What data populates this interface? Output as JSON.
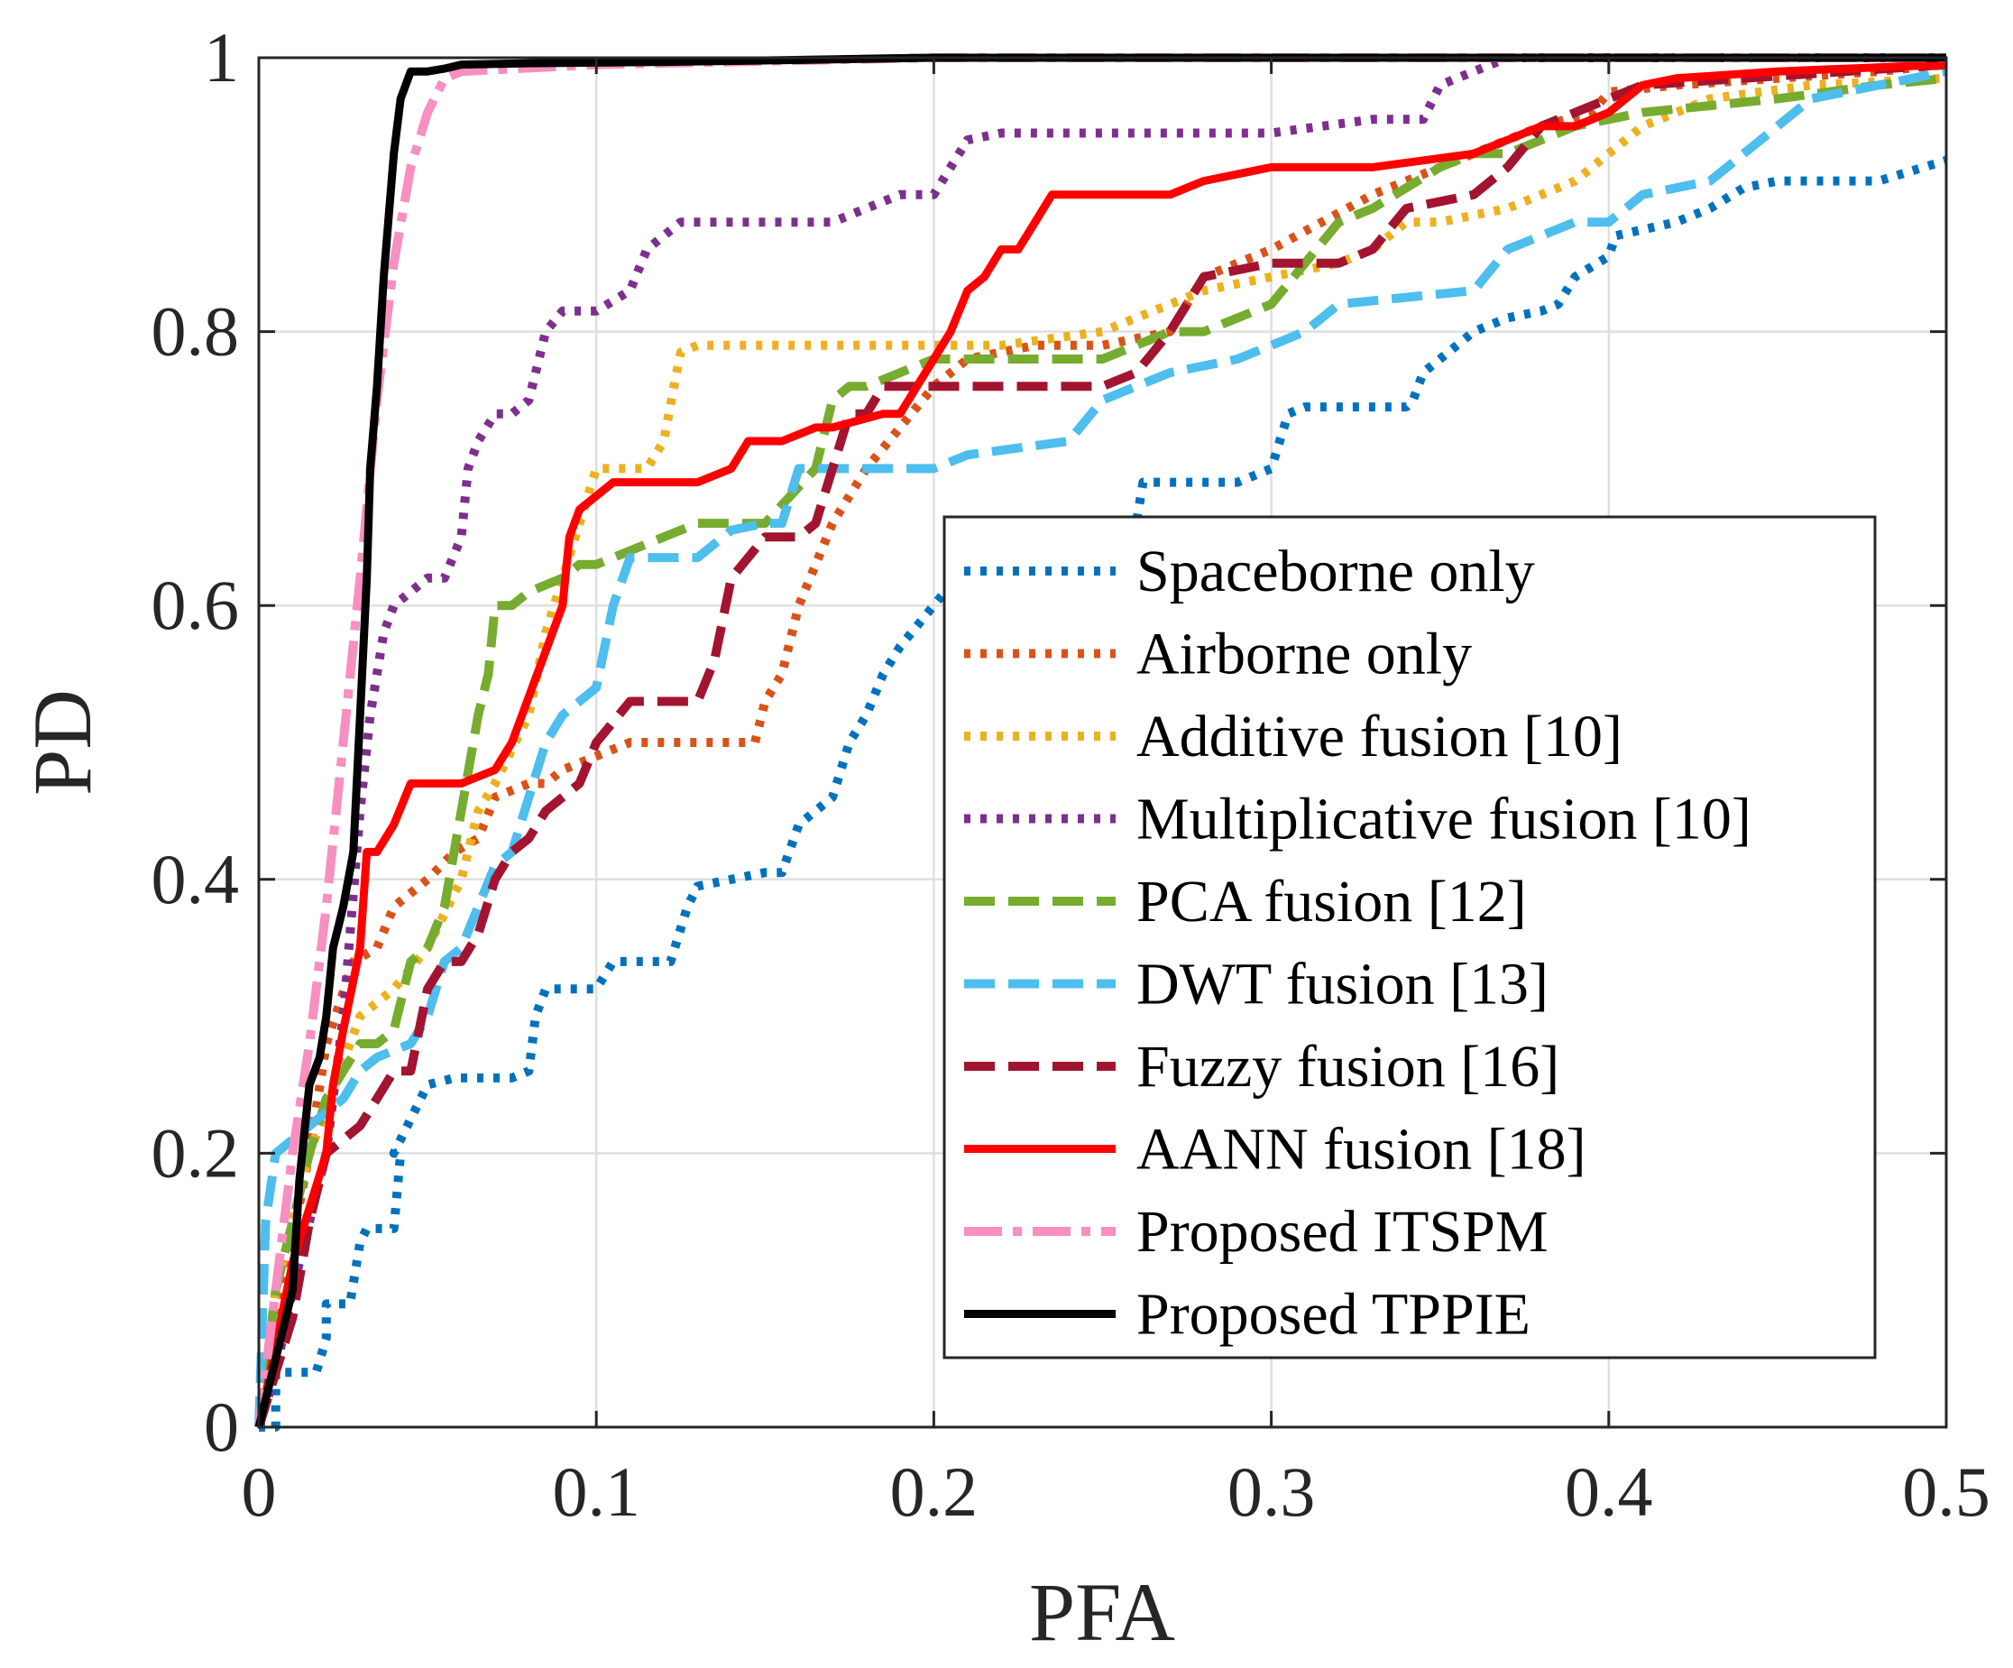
{
  "chart_data": {
    "type": "line",
    "title": "",
    "xlabel": "PFA",
    "ylabel": "PD",
    "xlim": [
      0,
      0.5
    ],
    "ylim": [
      0,
      1
    ],
    "xticks": [
      0,
      0.1,
      0.2,
      0.3,
      0.4,
      0.5
    ],
    "xtick_labels": [
      "0",
      "0.1",
      "0.2",
      "0.3",
      "0.4",
      "0.5"
    ],
    "yticks": [
      0,
      0.2,
      0.4,
      0.6,
      0.8,
      1
    ],
    "ytick_labels": [
      "0",
      "0.2",
      "0.4",
      "0.6",
      "0.8",
      "1"
    ],
    "grid": true,
    "legend_position": "lower-right",
    "series": [
      {
        "name": "Spaceborne only",
        "color": "#0072BD",
        "style": "dotted",
        "x": [
          0,
          0.005,
          0.005,
          0.017,
          0.02,
          0.02,
          0.027,
          0.03,
          0.032,
          0.04,
          0.042,
          0.04,
          0.05,
          0.058,
          0.06,
          0.075,
          0.08,
          0.082,
          0.085,
          0.088,
          0.1,
          0.105,
          0.11,
          0.122,
          0.127,
          0.13,
          0.14,
          0.15,
          0.155,
          0.16,
          0.17,
          0.175,
          0.18,
          0.185,
          0.19,
          0.2,
          0.21,
          0.22,
          0.23,
          0.24,
          0.25,
          0.26,
          0.262,
          0.27,
          0.29,
          0.3,
          0.305,
          0.31,
          0.32,
          0.34,
          0.342,
          0.345,
          0.35,
          0.36,
          0.37,
          0.38,
          0.385,
          0.39,
          0.4,
          0.402,
          0.42,
          0.43,
          0.44,
          0.45,
          0.46,
          0.48,
          0.5
        ],
        "y": [
          0,
          0,
          0.04,
          0.04,
          0.065,
          0.09,
          0.09,
          0.135,
          0.145,
          0.145,
          0.2,
          0.2,
          0.25,
          0.255,
          0.255,
          0.255,
          0.26,
          0.3,
          0.32,
          0.32,
          0.32,
          0.34,
          0.34,
          0.34,
          0.38,
          0.395,
          0.4,
          0.405,
          0.405,
          0.44,
          0.46,
          0.5,
          0.52,
          0.55,
          0.57,
          0.6,
          0.63,
          0.63,
          0.64,
          0.65,
          0.65,
          0.66,
          0.69,
          0.69,
          0.69,
          0.7,
          0.74,
          0.745,
          0.745,
          0.745,
          0.75,
          0.77,
          0.78,
          0.8,
          0.81,
          0.815,
          0.82,
          0.84,
          0.855,
          0.87,
          0.88,
          0.89,
          0.905,
          0.91,
          0.91,
          0.91,
          0.925
        ]
      },
      {
        "name": "Airborne only",
        "color": "#D95319",
        "style": "dotted",
        "x": [
          0,
          0.003,
          0.007,
          0.015,
          0.02,
          0.028,
          0.035,
          0.04,
          0.05,
          0.058,
          0.065,
          0.07,
          0.08,
          0.085,
          0.09,
          0.1,
          0.11,
          0.12,
          0.13,
          0.14,
          0.147,
          0.15,
          0.155,
          0.16,
          0.165,
          0.17,
          0.18,
          0.19,
          0.2,
          0.21,
          0.23,
          0.25,
          0.27,
          0.28,
          0.3,
          0.33,
          0.35,
          0.37,
          0.38,
          0.395,
          0.4,
          0.42,
          0.45,
          0.48,
          0.5
        ],
        "y": [
          0,
          0.04,
          0.1,
          0.2,
          0.28,
          0.34,
          0.35,
          0.38,
          0.4,
          0.42,
          0.43,
          0.46,
          0.47,
          0.47,
          0.48,
          0.49,
          0.5,
          0.5,
          0.5,
          0.5,
          0.5,
          0.53,
          0.55,
          0.6,
          0.63,
          0.66,
          0.7,
          0.73,
          0.76,
          0.78,
          0.79,
          0.79,
          0.8,
          0.84,
          0.86,
          0.9,
          0.92,
          0.94,
          0.95,
          0.96,
          0.975,
          0.98,
          0.985,
          0.99,
          0.995
        ]
      },
      {
        "name": "Additive fusion [10]",
        "color": "#EDB120",
        "style": "dotted",
        "x": [
          0,
          0.005,
          0.015,
          0.03,
          0.04,
          0.05,
          0.06,
          0.065,
          0.07,
          0.08,
          0.085,
          0.09,
          0.095,
          0.1,
          0.11,
          0.115,
          0.12,
          0.123,
          0.125,
          0.13,
          0.15,
          0.2,
          0.22,
          0.25,
          0.26,
          0.28,
          0.3,
          0.32,
          0.33,
          0.34,
          0.35,
          0.37,
          0.38,
          0.39,
          0.4,
          0.41,
          0.43,
          0.46,
          0.5
        ],
        "y": [
          0,
          0.1,
          0.2,
          0.3,
          0.32,
          0.35,
          0.4,
          0.45,
          0.47,
          0.52,
          0.58,
          0.62,
          0.66,
          0.7,
          0.7,
          0.7,
          0.72,
          0.76,
          0.785,
          0.79,
          0.79,
          0.79,
          0.79,
          0.8,
          0.81,
          0.83,
          0.84,
          0.85,
          0.86,
          0.88,
          0.88,
          0.89,
          0.9,
          0.91,
          0.93,
          0.95,
          0.97,
          0.98,
          0.985
        ]
      },
      {
        "name": "Multiplicative fusion [10]",
        "color": "#7E2F8E",
        "style": "dotted",
        "x": [
          0,
          0.005,
          0.01,
          0.015,
          0.02,
          0.025,
          0.03,
          0.033,
          0.035,
          0.037,
          0.04,
          0.045,
          0.05,
          0.055,
          0.06,
          0.062,
          0.065,
          0.07,
          0.075,
          0.08,
          0.085,
          0.09,
          0.1,
          0.11,
          0.115,
          0.12,
          0.125,
          0.13,
          0.15,
          0.17,
          0.18,
          0.19,
          0.2,
          0.205,
          0.21,
          0.22,
          0.25,
          0.3,
          0.33,
          0.345,
          0.35,
          0.36,
          0.37,
          0.38,
          0.4,
          0.45,
          0.5
        ],
        "y": [
          0,
          0.04,
          0.1,
          0.15,
          0.2,
          0.3,
          0.45,
          0.52,
          0.55,
          0.58,
          0.6,
          0.61,
          0.62,
          0.62,
          0.65,
          0.7,
          0.72,
          0.74,
          0.74,
          0.75,
          0.8,
          0.815,
          0.815,
          0.83,
          0.86,
          0.87,
          0.88,
          0.88,
          0.88,
          0.88,
          0.89,
          0.9,
          0.9,
          0.92,
          0.94,
          0.945,
          0.945,
          0.945,
          0.955,
          0.955,
          0.98,
          0.99,
          1.0,
          1.0,
          1.0,
          1.0,
          1.0
        ]
      },
      {
        "name": "PCA fusion [12]",
        "color": "#77AC30",
        "style": "dashed",
        "x": [
          0,
          0.005,
          0.01,
          0.015,
          0.02,
          0.025,
          0.03,
          0.035,
          0.04,
          0.045,
          0.05,
          0.055,
          0.06,
          0.065,
          0.068,
          0.07,
          0.075,
          0.08,
          0.09,
          0.095,
          0.1,
          0.11,
          0.12,
          0.13,
          0.15,
          0.165,
          0.17,
          0.175,
          0.18,
          0.19,
          0.2,
          0.25,
          0.26,
          0.27,
          0.28,
          0.3,
          0.31,
          0.32,
          0.33,
          0.35,
          0.36,
          0.37,
          0.38,
          0.39,
          0.4,
          0.41,
          0.43,
          0.45,
          0.48,
          0.5
        ],
        "y": [
          0,
          0.1,
          0.15,
          0.2,
          0.24,
          0.26,
          0.28,
          0.28,
          0.29,
          0.34,
          0.35,
          0.38,
          0.45,
          0.52,
          0.55,
          0.6,
          0.6,
          0.61,
          0.62,
          0.63,
          0.63,
          0.64,
          0.65,
          0.66,
          0.66,
          0.7,
          0.75,
          0.76,
          0.76,
          0.77,
          0.78,
          0.78,
          0.79,
          0.8,
          0.8,
          0.82,
          0.85,
          0.88,
          0.89,
          0.92,
          0.93,
          0.93,
          0.94,
          0.95,
          0.955,
          0.96,
          0.965,
          0.97,
          0.98,
          0.985
        ]
      },
      {
        "name": "DWT fusion [13]",
        "color": "#4DBEEE",
        "style": "dashed",
        "x": [
          0,
          0.002,
          0.005,
          0.01,
          0.015,
          0.02,
          0.025,
          0.03,
          0.035,
          0.045,
          0.05,
          0.055,
          0.06,
          0.065,
          0.07,
          0.075,
          0.08,
          0.085,
          0.09,
          0.095,
          0.1,
          0.105,
          0.11,
          0.13,
          0.14,
          0.15,
          0.155,
          0.16,
          0.17,
          0.2,
          0.21,
          0.24,
          0.25,
          0.26,
          0.27,
          0.29,
          0.31,
          0.32,
          0.36,
          0.37,
          0.38,
          0.39,
          0.4,
          0.41,
          0.43,
          0.44,
          0.45,
          0.46,
          0.48,
          0.5
        ],
        "y": [
          0,
          0.15,
          0.2,
          0.21,
          0.22,
          0.23,
          0.24,
          0.26,
          0.27,
          0.28,
          0.3,
          0.34,
          0.35,
          0.38,
          0.41,
          0.42,
          0.46,
          0.5,
          0.52,
          0.53,
          0.54,
          0.6,
          0.635,
          0.635,
          0.655,
          0.66,
          0.66,
          0.7,
          0.7,
          0.7,
          0.71,
          0.72,
          0.75,
          0.76,
          0.77,
          0.78,
          0.8,
          0.82,
          0.83,
          0.86,
          0.87,
          0.88,
          0.88,
          0.9,
          0.91,
          0.93,
          0.95,
          0.97,
          0.98,
          0.99
        ]
      },
      {
        "name": "Fuzzy fusion [16]",
        "color": "#A2142F",
        "style": "dashed",
        "x": [
          0,
          0.005,
          0.01,
          0.015,
          0.02,
          0.025,
          0.03,
          0.035,
          0.04,
          0.045,
          0.05,
          0.055,
          0.06,
          0.065,
          0.07,
          0.075,
          0.08,
          0.085,
          0.095,
          0.1,
          0.11,
          0.13,
          0.135,
          0.14,
          0.15,
          0.16,
          0.165,
          0.17,
          0.175,
          0.18,
          0.185,
          0.19,
          0.2,
          0.21,
          0.22,
          0.25,
          0.26,
          0.27,
          0.28,
          0.3,
          0.32,
          0.33,
          0.34,
          0.36,
          0.37,
          0.38,
          0.4,
          0.41,
          0.44,
          0.47,
          0.5
        ],
        "y": [
          0,
          0.04,
          0.08,
          0.15,
          0.2,
          0.21,
          0.22,
          0.24,
          0.26,
          0.26,
          0.32,
          0.34,
          0.34,
          0.36,
          0.4,
          0.42,
          0.43,
          0.45,
          0.47,
          0.5,
          0.53,
          0.53,
          0.56,
          0.62,
          0.65,
          0.65,
          0.66,
          0.7,
          0.74,
          0.74,
          0.76,
          0.76,
          0.76,
          0.76,
          0.76,
          0.76,
          0.77,
          0.8,
          0.84,
          0.85,
          0.85,
          0.86,
          0.89,
          0.9,
          0.92,
          0.95,
          0.97,
          0.98,
          0.985,
          0.99,
          0.995
        ]
      },
      {
        "name": "AANN fusion [18]",
        "color": "#FF0000",
        "style": "solid",
        "x": [
          0,
          0.005,
          0.01,
          0.015,
          0.02,
          0.022,
          0.025,
          0.03,
          0.032,
          0.035,
          0.04,
          0.045,
          0.045,
          0.06,
          0.07,
          0.075,
          0.09,
          0.092,
          0.095,
          0.1,
          0.105,
          0.13,
          0.14,
          0.145,
          0.155,
          0.165,
          0.17,
          0.185,
          0.19,
          0.195,
          0.2,
          0.205,
          0.21,
          0.215,
          0.22,
          0.225,
          0.23,
          0.235,
          0.24,
          0.27,
          0.28,
          0.3,
          0.31,
          0.33,
          0.36,
          0.38,
          0.39,
          0.4,
          0.405,
          0.41,
          0.42,
          0.45,
          0.5
        ],
        "y": [
          0,
          0.06,
          0.12,
          0.16,
          0.2,
          0.25,
          0.29,
          0.35,
          0.42,
          0.42,
          0.44,
          0.47,
          0.47,
          0.47,
          0.48,
          0.5,
          0.6,
          0.65,
          0.67,
          0.68,
          0.69,
          0.69,
          0.7,
          0.72,
          0.72,
          0.73,
          0.73,
          0.74,
          0.74,
          0.76,
          0.78,
          0.8,
          0.83,
          0.84,
          0.86,
          0.86,
          0.88,
          0.9,
          0.9,
          0.9,
          0.91,
          0.92,
          0.92,
          0.92,
          0.93,
          0.95,
          0.95,
          0.96,
          0.97,
          0.98,
          0.985,
          0.99,
          0.995
        ]
      },
      {
        "name": "Proposed ITSPM",
        "color": "#F78FC0",
        "style": "dashdot",
        "x": [
          0,
          0.005,
          0.01,
          0.015,
          0.02,
          0.025,
          0.03,
          0.035,
          0.04,
          0.045,
          0.05,
          0.055,
          0.06,
          0.1,
          0.2,
          0.3,
          0.4,
          0.5
        ],
        "y": [
          0,
          0.1,
          0.2,
          0.28,
          0.38,
          0.5,
          0.62,
          0.75,
          0.85,
          0.92,
          0.96,
          0.985,
          0.99,
          0.995,
          1.0,
          1.0,
          1.0,
          1.0
        ]
      },
      {
        "name": "Proposed TPPIE",
        "color": "#000000",
        "style": "solid",
        "x": [
          0,
          0.005,
          0.007,
          0.01,
          0.012,
          0.015,
          0.018,
          0.02,
          0.022,
          0.025,
          0.028,
          0.03,
          0.032,
          0.033,
          0.035,
          0.037,
          0.04,
          0.042,
          0.045,
          0.047,
          0.05,
          0.055,
          0.06,
          0.08,
          0.12,
          0.15,
          0.2,
          0.25,
          0.3,
          0.4,
          0.5
        ],
        "y": [
          0,
          0.05,
          0.07,
          0.1,
          0.18,
          0.25,
          0.27,
          0.3,
          0.35,
          0.38,
          0.42,
          0.52,
          0.62,
          0.7,
          0.76,
          0.84,
          0.93,
          0.97,
          0.99,
          0.99,
          0.99,
          0.992,
          0.995,
          0.996,
          0.997,
          0.998,
          1.0,
          1.0,
          1.0,
          1.0,
          1.0
        ]
      }
    ]
  }
}
